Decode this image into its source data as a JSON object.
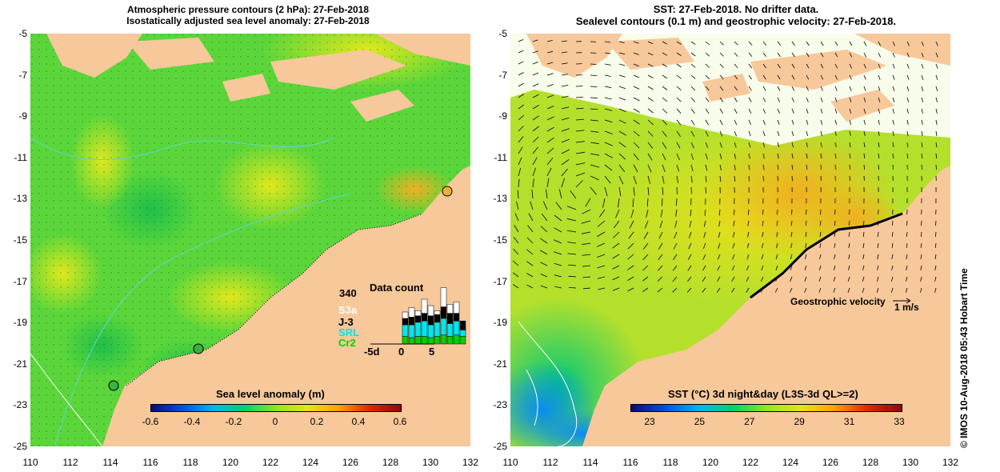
{
  "left_panel": {
    "title_line1": "Atmospheric pressure contours (2 hPa): 27-Feb-2018",
    "title_line2": "Isostatically adjusted sea level anomaly: 27-Feb-2018",
    "colorbar_title": "Sea level anomaly (m)",
    "colorbar_ticks": [
      "-0.6",
      "-0.4",
      "-0.2",
      "0",
      "0.2",
      "0.4",
      "0.6"
    ],
    "colorbar_colors": [
      "#0a0a7a",
      "#0050e0",
      "#00b4f0",
      "#00d26e",
      "#8ee81a",
      "#e6e614",
      "#ffa000",
      "#dc2800",
      "#8c0a0a"
    ],
    "data_count": {
      "title": "Data count",
      "max_label": "340",
      "legend": [
        {
          "label": "S3a",
          "color": "#ffffff"
        },
        {
          "label": "J-3",
          "color": "#000000"
        },
        {
          "label": "SRL",
          "color": "#00e6f0"
        },
        {
          "label": "Cr2",
          "color": "#00d200"
        }
      ],
      "x_ticks": [
        "-5d",
        "0",
        "5"
      ],
      "bars": [
        {
          "cr2": 0.12,
          "srl": 0.18,
          "j3": 0.1,
          "s3a": 0.1
        },
        {
          "cr2": 0.1,
          "srl": 0.2,
          "j3": 0.12,
          "s3a": 0.15
        },
        {
          "cr2": 0.12,
          "srl": 0.22,
          "j3": 0.1,
          "s3a": 0.08
        },
        {
          "cr2": 0.12,
          "srl": 0.24,
          "j3": 0.12,
          "s3a": 0.22
        },
        {
          "cr2": 0.1,
          "srl": 0.2,
          "j3": 0.14,
          "s3a": 0.16
        },
        {
          "cr2": 0.12,
          "srl": 0.22,
          "j3": 0.12,
          "s3a": 0.06
        },
        {
          "cr2": 0.14,
          "srl": 0.26,
          "j3": 0.18,
          "s3a": 0.3
        },
        {
          "cr2": 0.12,
          "srl": 0.2,
          "j3": 0.16,
          "s3a": 0.14
        },
        {
          "cr2": 0.14,
          "srl": 0.22,
          "j3": 0.12,
          "s3a": 0.18
        },
        {
          "cr2": 0.12,
          "srl": 0.1,
          "j3": 0.14,
          "s3a": 0.0
        }
      ]
    }
  },
  "right_panel": {
    "title_line1": "SST: 27-Feb-2018. No drifter data.",
    "title_line2": "Sealevel contours (0.1 m) and geostrophic velocity: 27-Feb-2018.",
    "colorbar_title": "SST (°C) 3d night&day (L3S-3d QL>=2)",
    "colorbar_ticks": [
      "23",
      "25",
      "27",
      "29",
      "31",
      "33"
    ],
    "colorbar_colors": [
      "#0a0a7a",
      "#0050e0",
      "#00b4f0",
      "#00d26e",
      "#8ee81a",
      "#e6e614",
      "#ffa000",
      "#dc2800",
      "#8c0a0a"
    ],
    "geostrophic_label": "Geostrophic velocity",
    "velocity_scale_label": "1 m/s"
  },
  "axes": {
    "lat_ticks": [
      "-5",
      "-7",
      "-9",
      "-11",
      "-13",
      "-15",
      "-17",
      "-19",
      "-21",
      "-23",
      "-25"
    ],
    "lon_ticks": [
      "110",
      "112",
      "114",
      "116",
      "118",
      "120",
      "122",
      "124",
      "126",
      "128",
      "130",
      "132"
    ]
  },
  "credit": "© IMOS 10-Aug-2018 05:43 Hobart Time",
  "colors": {
    "land": "#f7c89a",
    "left_ocean": "#4fd63a",
    "right_ocean": "#a8e030"
  }
}
